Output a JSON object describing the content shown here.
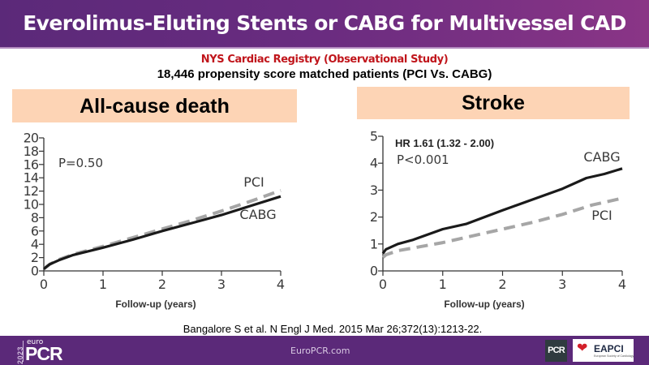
{
  "header": {
    "title": "Everolimus-Eluting Stents or CABG for Multivessel CAD"
  },
  "subtitle": {
    "registry": "NYS Cardiac Registry (Observational Study)",
    "patients": "18,446 propensity score matched patients (PCI Vs. CABG)"
  },
  "colors": {
    "header_left": "#5b2979",
    "header_right": "#8a3586",
    "panel_title_bg": "#fdd4b5",
    "registry_red": "#c0151b",
    "cabg_line": "#1a1a1a",
    "pci_line": "#a6a6a6"
  },
  "citation": "Bangalore S et al. N Engl J Med. 2015 Mar 26;372(13):1213-22.",
  "footer": {
    "logo_year": "2023",
    "logo_euro": "euro",
    "logo_pcr": "PCR",
    "url": "EuroPCR.com",
    "partner1": "PCR",
    "partner2": "EAPCI",
    "partner2_sub": "European Society of Cardiology",
    "partner2_icon": "heart-icon"
  },
  "chart_data": [
    {
      "type": "line",
      "title": "All-cause death",
      "xlabel": "Follow-up (years)",
      "ylabel": "",
      "xlim": [
        0,
        4
      ],
      "ylim": [
        0,
        20
      ],
      "xticks": [
        "0",
        "1",
        "2",
        "3",
        "4"
      ],
      "yticks": [
        "0",
        "2",
        "4",
        "6",
        "8",
        "10",
        "12",
        "14",
        "16",
        "18",
        "20"
      ],
      "annotation": "P=0.50",
      "grid": false,
      "series": [
        {
          "name": "PCI",
          "style": "dashed",
          "x": [
            0,
            0.1,
            0.25,
            0.5,
            1,
            1.5,
            2,
            2.5,
            3,
            3.5,
            4
          ],
          "y": [
            0.3,
            1.0,
            1.7,
            2.5,
            3.7,
            5.0,
            6.3,
            7.6,
            9.0,
            10.5,
            12.1
          ]
        },
        {
          "name": "CABG",
          "style": "solid",
          "x": [
            0,
            0.1,
            0.25,
            0.5,
            1,
            1.5,
            2,
            2.5,
            3,
            3.5,
            4
          ],
          "y": [
            0.3,
            1.0,
            1.6,
            2.4,
            3.5,
            4.7,
            6.0,
            7.2,
            8.4,
            9.8,
            11.2
          ]
        }
      ]
    },
    {
      "type": "line",
      "title": "Stroke",
      "xlabel": "Follow-up (years)",
      "ylabel": "",
      "xlim": [
        0,
        4
      ],
      "ylim": [
        0,
        5
      ],
      "xticks": [
        "0",
        "1",
        "2",
        "3",
        "4"
      ],
      "yticks": [
        "0",
        "1",
        "2",
        "3",
        "4",
        "5"
      ],
      "annotation_bold": "HR 1.61 (1.32 - 2.00)",
      "annotation": "P<0.001",
      "grid": false,
      "series": [
        {
          "name": "CABG",
          "style": "solid",
          "x": [
            0,
            0.05,
            0.25,
            0.5,
            1,
            1.4,
            2,
            2.5,
            3,
            3.4,
            3.7,
            4
          ],
          "y": [
            0.65,
            0.8,
            1.0,
            1.15,
            1.55,
            1.75,
            2.25,
            2.65,
            3.05,
            3.45,
            3.6,
            3.8
          ]
        },
        {
          "name": "PCI",
          "style": "dashed",
          "x": [
            0,
            0.05,
            0.25,
            0.5,
            1,
            1.5,
            2,
            2.5,
            3,
            3.5,
            4
          ],
          "y": [
            0.5,
            0.6,
            0.75,
            0.85,
            1.05,
            1.3,
            1.55,
            1.8,
            2.1,
            2.45,
            2.7
          ]
        }
      ]
    }
  ]
}
